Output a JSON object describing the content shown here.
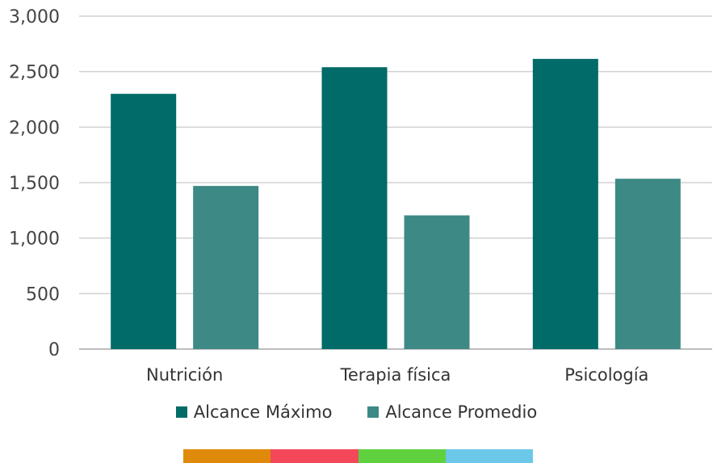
{
  "chart_data": {
    "type": "bar",
    "categories": [
      "Nutrición",
      "Terapia física",
      "Psicología"
    ],
    "series": [
      {
        "name": "Alcance Máximo",
        "values": [
          2300,
          2540,
          2615
        ],
        "color": "#006b68"
      },
      {
        "name": "Alcance Promedio",
        "values": [
          1470,
          1205,
          1535
        ],
        "color": "#3d8985"
      }
    ],
    "ylim": [
      0,
      3000
    ],
    "yticks": [
      0,
      500,
      1000,
      1500,
      2000,
      2500,
      3000
    ],
    "ytick_labels": [
      "0",
      "500",
      "1,000",
      "1,500",
      "2,000",
      "2,500",
      "3,000"
    ],
    "grid": true,
    "legend_position": "bottom"
  },
  "footer_bar": {
    "colors": [
      "#e08a0c",
      "#f5475a",
      "#5fd13f",
      "#6cc8e8"
    ]
  }
}
